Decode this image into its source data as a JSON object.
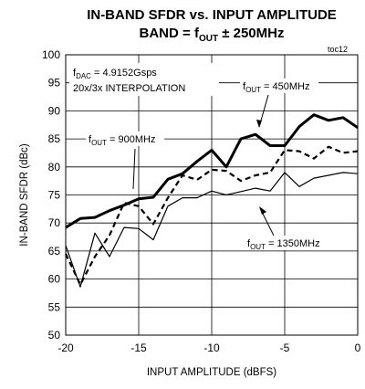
{
  "chart_data": {
    "type": "line",
    "title_line1": "IN-BAND SFDR vs. INPUT AMPLITUDE",
    "title_line2": {
      "prefix": "BAND = f",
      "sub": "OUT",
      "suffix": " ± 250MHz"
    },
    "figure_code": "toc12",
    "xlabel": "INPUT AMPLITUDE (dBFS)",
    "ylabel": "IN-BAND SFDR (dBc)",
    "xlim": [
      -20,
      0
    ],
    "ylim": [
      50,
      100
    ],
    "xticks": [
      "-20",
      "-15",
      "-10",
      "-5",
      "0"
    ],
    "yticks": [
      "50",
      "55",
      "60",
      "65",
      "70",
      "75",
      "80",
      "85",
      "90",
      "95",
      "100"
    ],
    "grid": true,
    "conditions": {
      "line1": {
        "prefix": "f",
        "sub": "DAC",
        "suffix": " = 4.9152Gsps"
      },
      "line2": "20x/3x INTERPOLATION"
    },
    "series": [
      {
        "name": {
          "prefix": "f",
          "sub": "OUT",
          "suffix": " = 450MHz"
        },
        "style": "thick",
        "x": [
          -20,
          -19,
          -18,
          -17,
          -16,
          -15,
          -14,
          -13,
          -12,
          -11,
          -10,
          -9,
          -8,
          -7,
          -6,
          -5,
          -4,
          -3,
          -2,
          -1,
          0
        ],
        "y": [
          69.2,
          70.8,
          71.0,
          72.2,
          73.2,
          74.3,
          74.6,
          77.8,
          78.8,
          81.0,
          83.0,
          80.0,
          85.0,
          85.8,
          83.8,
          83.8,
          87.2,
          89.3,
          88.3,
          88.8,
          87.0
        ]
      },
      {
        "name": {
          "prefix": "f",
          "sub": "OUT",
          "suffix": " = 900MHz"
        },
        "style": "dashed",
        "x": [
          -20,
          -19,
          -18,
          -17,
          -16,
          -15,
          -14,
          -13,
          -12,
          -11,
          -10,
          -9,
          -8,
          -7,
          -6,
          -5,
          -4,
          -3,
          -2,
          -1,
          0
        ],
        "y": [
          64.5,
          59.0,
          64.0,
          67.8,
          73.6,
          73.0,
          69.8,
          74.5,
          78.5,
          77.7,
          79.5,
          79.3,
          77.5,
          78.5,
          79.0,
          83.0,
          82.8,
          81.5,
          83.6,
          82.5,
          82.8
        ]
      },
      {
        "name": {
          "prefix": "f",
          "sub": "OUT",
          "suffix": " = 1350MHz"
        },
        "style": "thin",
        "x": [
          -20,
          -19,
          -18,
          -17,
          -16,
          -15,
          -14,
          -13,
          -12,
          -11,
          -10,
          -9,
          -8,
          -7,
          -6,
          -5,
          -4,
          -3,
          -2,
          -1,
          0
        ],
        "y": [
          66.0,
          58.6,
          68.2,
          64.0,
          69.2,
          69.0,
          67.0,
          73.0,
          74.5,
          74.5,
          75.7,
          75.0,
          75.6,
          76.2,
          75.7,
          79.0,
          76.5,
          78.0,
          78.5,
          79.0,
          78.8
        ]
      }
    ]
  }
}
